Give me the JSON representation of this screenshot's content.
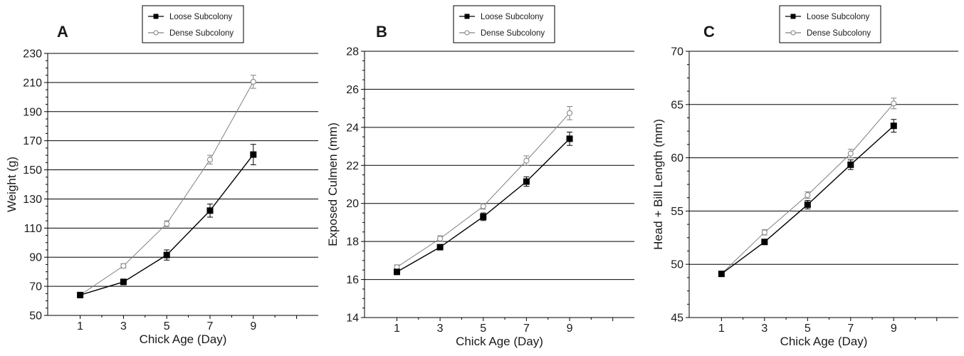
{
  "chart_data": [
    {
      "type": "line",
      "panel": "A",
      "xlabel": "Chick Age (Day)",
      "ylabel": "Weight (g)",
      "x": [
        1,
        3,
        5,
        7,
        9
      ],
      "xlim": [
        -0.5,
        12
      ],
      "ylim": [
        50,
        230
      ],
      "yticks": [
        50,
        70,
        90,
        110,
        130,
        150,
        170,
        190,
        210,
        230
      ],
      "grid": "horizontal",
      "legend_position": "top-center",
      "series": [
        {
          "name": "Loose Subcolony",
          "marker": "filled-square",
          "color": "#000000",
          "values": [
            64,
            73,
            91.5,
            122,
            160.5
          ],
          "errors": [
            1.5,
            2,
            3.5,
            4.5,
            7
          ]
        },
        {
          "name": "Dense Subcolony",
          "marker": "open-circle",
          "color": "#808080",
          "values": [
            64,
            84,
            113,
            157,
            210.5
          ],
          "errors": [
            1,
            1.5,
            2,
            3,
            4.5
          ]
        }
      ]
    },
    {
      "type": "line",
      "panel": "B",
      "xlabel": "Chick Age (Day)",
      "ylabel": "Exposed Culmen (mm)",
      "x": [
        1,
        3,
        5,
        7,
        9
      ],
      "xlim": [
        -0.5,
        12
      ],
      "ylim": [
        14,
        28
      ],
      "yticks": [
        14,
        16,
        18,
        20,
        22,
        24,
        26,
        28
      ],
      "grid": "horizontal",
      "legend_position": "top-center",
      "series": [
        {
          "name": "Loose Subcolony",
          "marker": "filled-square",
          "color": "#000000",
          "values": [
            16.4,
            17.7,
            19.3,
            21.15,
            23.4
          ],
          "errors": [
            0.12,
            0.12,
            0.2,
            0.25,
            0.35
          ]
        },
        {
          "name": "Dense Subcolony",
          "marker": "open-circle",
          "color": "#808080",
          "values": [
            16.65,
            18.15,
            19.85,
            22.25,
            24.75
          ],
          "errors": [
            0.12,
            0.15,
            0.15,
            0.25,
            0.35
          ]
        }
      ]
    },
    {
      "type": "line",
      "panel": "C",
      "xlabel": "Chick Age (Day)",
      "ylabel": "Head + Bill Length (mm)",
      "x": [
        1,
        3,
        5,
        7,
        9
      ],
      "xlim": [
        -0.5,
        12
      ],
      "ylim": [
        45,
        70
      ],
      "yticks": [
        45,
        50,
        55,
        60,
        65,
        70
      ],
      "grid": "horizontal",
      "legend_position": "top-center",
      "series": [
        {
          "name": "Loose Subcolony",
          "marker": "filled-square",
          "color": "#000000",
          "values": [
            49.1,
            52.1,
            55.6,
            59.35,
            63.0
          ],
          "errors": [
            0.2,
            0.25,
            0.4,
            0.45,
            0.6
          ]
        },
        {
          "name": "Dense Subcolony",
          "marker": "open-circle",
          "color": "#808080",
          "values": [
            49.1,
            53.0,
            56.5,
            60.4,
            65.1
          ],
          "errors": [
            0.15,
            0.25,
            0.3,
            0.4,
            0.5
          ]
        }
      ]
    }
  ]
}
